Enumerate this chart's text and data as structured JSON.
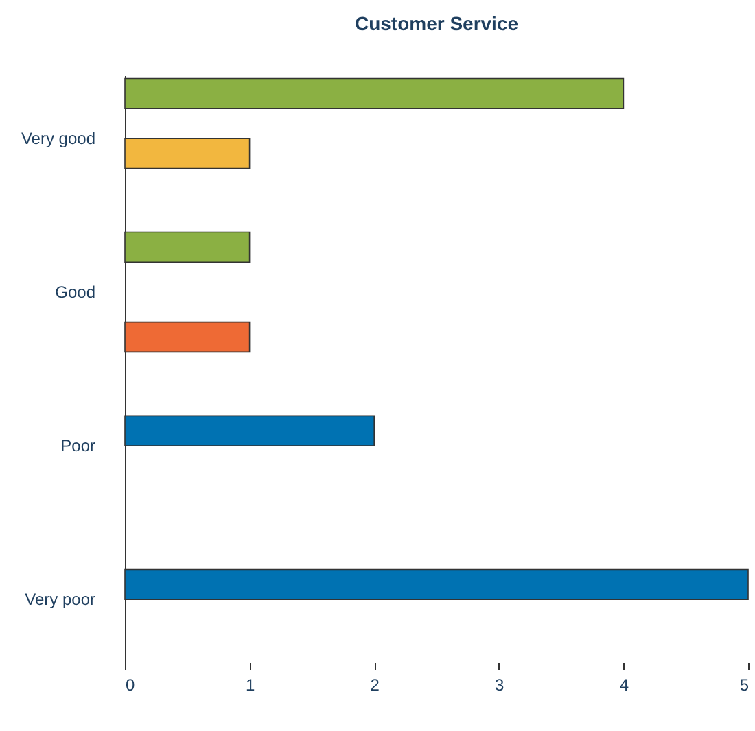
{
  "chart_data": {
    "type": "bar",
    "orientation": "horizontal",
    "title": "Customer Service",
    "categories": [
      "Very good",
      "Good",
      "Poor",
      "Very poor"
    ],
    "series": [
      {
        "color": "#8bb043",
        "values": [
          4,
          1,
          null,
          null
        ]
      },
      {
        "color": "#0072b2",
        "values": [
          null,
          null,
          2,
          5
        ]
      },
      {
        "color": "#f2b73f",
        "values": [
          1,
          null,
          null,
          null
        ]
      },
      {
        "color": "#ee6a35",
        "values": [
          null,
          1,
          null,
          null
        ]
      }
    ],
    "xlim": [
      0,
      5
    ],
    "xticks": [
      0,
      1,
      2,
      3,
      4,
      5
    ]
  }
}
